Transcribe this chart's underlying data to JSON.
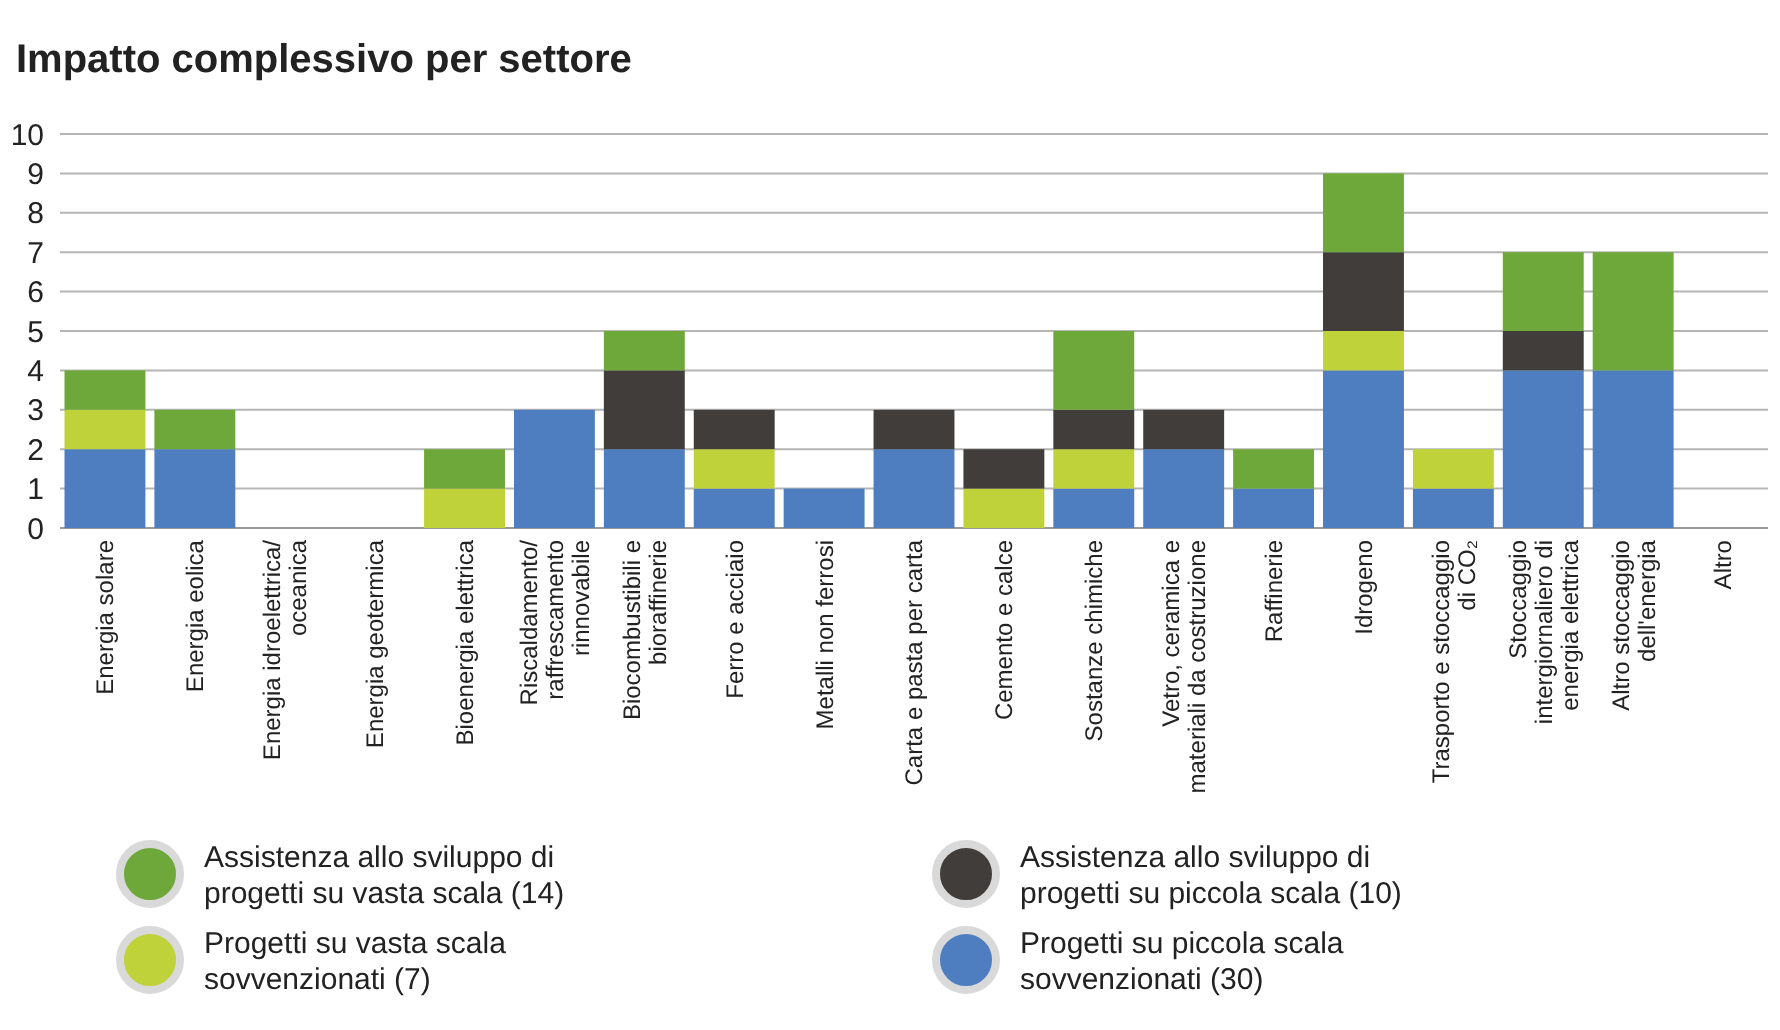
{
  "chart_data": {
    "type": "bar",
    "title": "Impatto complessivo per settore",
    "categories": [
      "Energia solare",
      "Energia eolica",
      "Energia idroelettrica/oceanica",
      "Energia geotermica",
      "Bioenergia elettrica",
      "Riscaldamento/raffrescamento rinnovabile",
      "Biocombustibili e bioraffinerie",
      "Ferro e acciaio",
      "Metalli non ferrosi",
      "Carta e pasta per carta",
      "Cemento e calce",
      "Sostanze chimiche",
      "Vetro, ceramica e materiali da costruzione",
      "Raffinerie",
      "Idrogeno",
      "Trasporto e stoccaggio di CO₂",
      "Stoccaggio intergiornaliero di energia elettrica",
      "Altro stoccaggio dell'energia",
      "Altro"
    ],
    "stacked": true,
    "series": [
      {
        "name": "Progetti su piccola scala sovvenzionati (30)",
        "color": "#4f7ec0",
        "values": [
          2,
          2,
          0,
          0,
          0,
          3,
          2,
          1,
          1,
          2,
          0,
          1,
          2,
          1,
          4,
          1,
          4,
          4,
          0
        ]
      },
      {
        "name": "Progetti su vasta scala sovvenzionati (7)",
        "color": "#bfd23a",
        "values": [
          1,
          0,
          0,
          0,
          1,
          0,
          0,
          1,
          0,
          0,
          1,
          1,
          0,
          0,
          1,
          1,
          0,
          0,
          0
        ]
      },
      {
        "name": "Assistenza allo sviluppo di progetti su piccola scala (10)",
        "color": "#403d3a",
        "values": [
          0,
          0,
          0,
          0,
          0,
          0,
          2,
          1,
          0,
          1,
          1,
          1,
          1,
          0,
          2,
          0,
          1,
          0,
          0
        ]
      },
      {
        "name": "Assistenza allo sviluppo di progetti su vasta scala (14)",
        "color": "#6ea83a",
        "values": [
          1,
          1,
          0,
          0,
          1,
          0,
          1,
          0,
          0,
          0,
          0,
          2,
          0,
          1,
          2,
          0,
          2,
          3,
          0
        ]
      }
    ],
    "ylim": [
      0,
      10
    ],
    "yticks": [
      0,
      1,
      2,
      3,
      4,
      5,
      6,
      7,
      8,
      9,
      10
    ],
    "grid": "y",
    "legend": "bottom"
  }
}
